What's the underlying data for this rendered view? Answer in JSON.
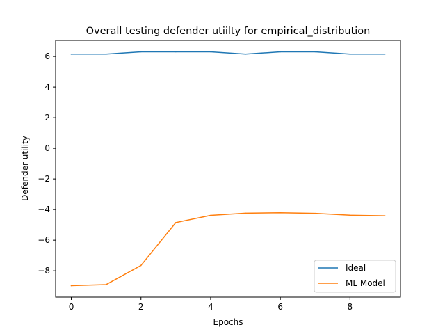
{
  "chart_data": {
    "type": "line",
    "title": "Overall testing defender utiilty for empirical_distribution",
    "xlabel": "Epochs",
    "ylabel": "Defender utility",
    "x": [
      0,
      1,
      2,
      3,
      4,
      5,
      6,
      7,
      8,
      9
    ],
    "xlim": [
      -0.45,
      9.45
    ],
    "ylim": [
      -9.72,
      7.05
    ],
    "xticks": [
      0,
      2,
      4,
      6,
      8
    ],
    "xtick_labels": [
      "0",
      "2",
      "4",
      "6",
      "8"
    ],
    "yticks": [
      6,
      4,
      2,
      0,
      -2,
      -4,
      -6,
      -8
    ],
    "ytick_labels": [
      "6",
      "4",
      "2",
      "0",
      "−2",
      "−4",
      "−6",
      "−8"
    ],
    "grid": false,
    "legend_position": "lower-right",
    "series": [
      {
        "name": "Ideal",
        "color": "#1f77b4",
        "values": [
          6.15,
          6.15,
          6.3,
          6.3,
          6.3,
          6.15,
          6.3,
          6.3,
          6.15,
          6.15
        ]
      },
      {
        "name": "ML Model",
        "color": "#ff7f0e",
        "values": [
          -8.97,
          -8.9,
          -7.65,
          -4.85,
          -4.38,
          -4.24,
          -4.21,
          -4.25,
          -4.37,
          -4.41
        ]
      }
    ]
  }
}
